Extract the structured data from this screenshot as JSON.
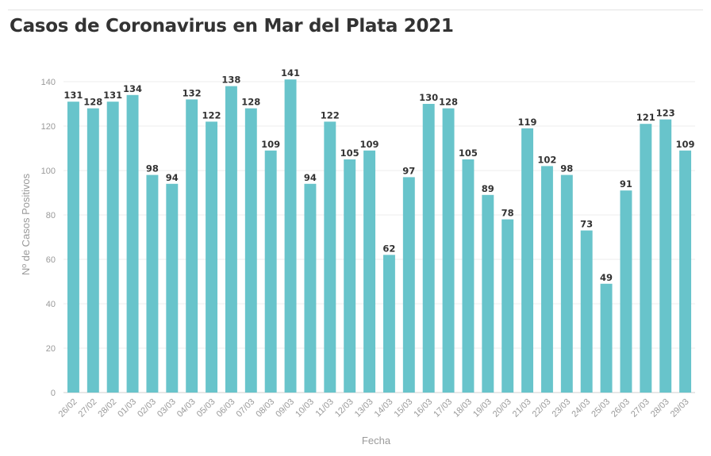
{
  "chart_data": {
    "type": "bar",
    "title": "Casos de Coronavirus en Mar del Plata 2021",
    "xlabel": "Fecha",
    "ylabel": "Nº de Casos Positivos",
    "ylim": [
      0,
      150
    ],
    "yticks": [
      0,
      20,
      40,
      60,
      80,
      100,
      120,
      140
    ],
    "grid": true,
    "bar_color": "#68c4cb",
    "categories": [
      "26/02",
      "27/02",
      "28/02",
      "01/03",
      "02/03",
      "03/03",
      "04/03",
      "05/03",
      "06/03",
      "07/03",
      "08/03",
      "09/03",
      "10/03",
      "11/03",
      "12/03",
      "13/03",
      "14/03",
      "15/03",
      "16/03",
      "17/03",
      "18/03",
      "19/03",
      "20/03",
      "21/03",
      "22/03",
      "23/03",
      "24/03",
      "25/03",
      "26/03",
      "27/03",
      "28/03",
      "29/03"
    ],
    "values": [
      131,
      128,
      131,
      134,
      98,
      94,
      132,
      122,
      138,
      128,
      109,
      141,
      94,
      122,
      105,
      109,
      62,
      97,
      130,
      128,
      105,
      89,
      78,
      119,
      102,
      98,
      73,
      49,
      91,
      121,
      123,
      109
    ]
  }
}
